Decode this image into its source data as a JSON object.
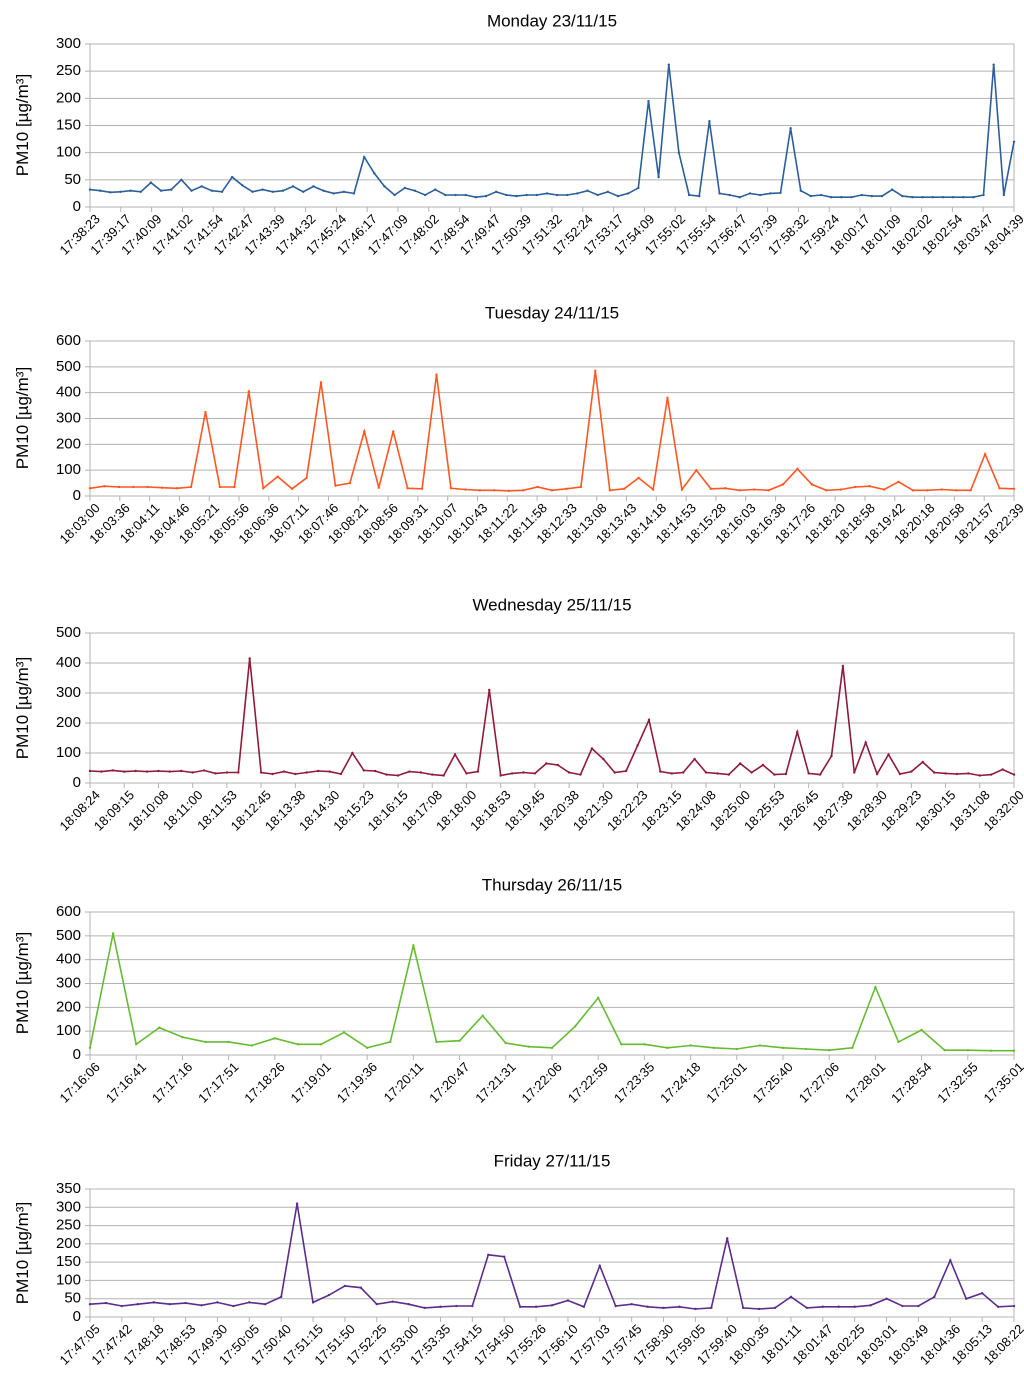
{
  "chart_data": [
    {
      "type": "line",
      "title": "Monday 23/11/15",
      "ylabel": "PM10 [µg/m³]",
      "xlabel": "",
      "ylim": [
        0,
        300
      ],
      "yticks": [
        0,
        50,
        100,
        150,
        200,
        250,
        300
      ],
      "color": "#2c5f99",
      "tick_labels": [
        "17:38:23",
        "17:39:17",
        "17:40:09",
        "17:41:02",
        "17:41:54",
        "17:42:47",
        "17:43:39",
        "17:44:32",
        "17:45:24",
        "17:46:17",
        "17:47:09",
        "17:48:02",
        "17:48:54",
        "17:49:47",
        "17:50:39",
        "17:51:32",
        "17:52:24",
        "17:53:17",
        "17:54:09",
        "17:55:02",
        "17:55:54",
        "17:56:47",
        "17:57:39",
        "17:58:32",
        "17:59:24",
        "18:00:17",
        "18:01:09",
        "18:02:02",
        "18:02:54",
        "18:03:47",
        "18:04:39"
      ],
      "values": [
        32,
        30,
        27,
        28,
        30,
        28,
        45,
        30,
        32,
        50,
        30,
        38,
        30,
        28,
        55,
        40,
        28,
        32,
        28,
        30,
        38,
        28,
        38,
        30,
        25,
        28,
        25,
        92,
        62,
        38,
        22,
        35,
        30,
        22,
        32,
        22,
        22,
        22,
        18,
        20,
        28,
        22,
        20,
        22,
        22,
        25,
        22,
        22,
        25,
        30,
        22,
        28,
        20,
        25,
        35,
        195,
        55,
        262,
        100,
        22,
        20,
        158,
        25,
        22,
        18,
        25,
        22,
        25,
        26,
        145,
        30,
        20,
        22,
        18,
        18,
        18,
        22,
        20,
        20,
        32,
        20,
        18,
        18,
        18,
        18,
        18,
        18,
        18,
        22,
        262,
        22,
        120
      ]
    },
    {
      "type": "line",
      "title": "Tuesday 24/11/15",
      "ylabel": "PM10 [µg/m³]",
      "xlabel": "",
      "ylim": [
        0,
        600
      ],
      "yticks": [
        0,
        100,
        200,
        300,
        400,
        500,
        600
      ],
      "color": "#ff5722",
      "tick_labels": [
        "18:03:00",
        "18:03:36",
        "18:04:11",
        "18:04:46",
        "18:05:21",
        "18:05:56",
        "18:06:36",
        "18:07:11",
        "18:07:46",
        "18:08:21",
        "18:08:56",
        "18:09:31",
        "18:10:07",
        "18:10:43",
        "18:11:22",
        "18:11:58",
        "18:12:33",
        "18:13:08",
        "18:13:43",
        "18:14:18",
        "18:14:53",
        "18:15:28",
        "18:16:03",
        "18:16:38",
        "18:17:26",
        "18:18:20",
        "18:18:58",
        "18:19:42",
        "18:20:18",
        "18:20:58",
        "18:21:57",
        "18:22:39"
      ],
      "values": [
        30,
        38,
        35,
        35,
        35,
        32,
        30,
        35,
        325,
        35,
        35,
        405,
        30,
        75,
        28,
        70,
        440,
        40,
        50,
        250,
        32,
        250,
        30,
        28,
        470,
        30,
        25,
        22,
        22,
        20,
        22,
        35,
        22,
        28,
        35,
        485,
        22,
        28,
        70,
        25,
        380,
        25,
        100,
        28,
        30,
        22,
        25,
        22,
        45,
        105,
        45,
        22,
        25,
        35,
        38,
        25,
        55,
        22,
        22,
        25,
        22,
        22,
        162,
        30,
        28
      ]
    },
    {
      "type": "line",
      "title": "Wednesday 25/11/15",
      "ylabel": "PM10 [µg/m³]",
      "xlabel": "",
      "ylim": [
        0,
        500
      ],
      "yticks": [
        0,
        100,
        200,
        300,
        400,
        500
      ],
      "color": "#8e1b3c",
      "tick_labels": [
        "18:08:24",
        "18:09:15",
        "18:10:08",
        "18:11:00",
        "18:11:53",
        "18:12:45",
        "18:13:38",
        "18:14:30",
        "18:15:23",
        "18:16:15",
        "18:17:08",
        "18:18:00",
        "18:18:53",
        "18:19:45",
        "18:20:38",
        "18:21:30",
        "18:22:23",
        "18:23:15",
        "18:24:08",
        "18:25:00",
        "18:25:53",
        "18:26:45",
        "18:27:38",
        "18:28:30",
        "18:29:23",
        "18:30:15",
        "18:31:08",
        "18:32:00"
      ],
      "values": [
        40,
        38,
        42,
        38,
        40,
        38,
        40,
        38,
        40,
        35,
        42,
        32,
        35,
        35,
        415,
        35,
        30,
        38,
        30,
        35,
        40,
        38,
        30,
        100,
        42,
        40,
        28,
        25,
        38,
        35,
        28,
        25,
        95,
        32,
        38,
        310,
        25,
        32,
        35,
        32,
        65,
        60,
        35,
        28,
        115,
        80,
        35,
        40,
        125,
        210,
        38,
        32,
        35,
        80,
        35,
        32,
        28,
        65,
        35,
        60,
        28,
        30,
        170,
        32,
        28,
        90,
        390,
        35,
        135,
        30,
        95,
        30,
        38,
        70,
        35,
        32,
        30,
        32,
        25,
        28,
        45,
        28
      ]
    },
    {
      "type": "line",
      "title": "Thursday 26/11/15",
      "ylabel": "PM10 [µg/m³]",
      "xlabel": "",
      "ylim": [
        0,
        600
      ],
      "yticks": [
        0,
        100,
        200,
        300,
        400,
        500,
        600
      ],
      "color": "#66bb33",
      "tick_labels": [
        "17:16:06",
        "17:16:41",
        "17:17:16",
        "17:17:51",
        "17:18:26",
        "17:19:01",
        "17:19:36",
        "17:20:11",
        "17:20:47",
        "17:21:31",
        "17:22:06",
        "17:22:59",
        "17:23:35",
        "17:24:18",
        "17:25:01",
        "17:25:40",
        "17:27:06",
        "17:28:01",
        "17:28:54",
        "17:32:55",
        "17:35:01"
      ],
      "values": [
        30,
        510,
        45,
        115,
        75,
        55,
        55,
        40,
        70,
        45,
        45,
        95,
        30,
        55,
        460,
        55,
        60,
        165,
        50,
        35,
        30,
        120,
        240,
        45,
        45,
        30,
        40,
        30,
        25,
        40,
        30,
        25,
        20,
        30,
        285,
        55,
        105,
        20,
        20,
        18,
        18
      ]
    },
    {
      "type": "line",
      "title": "Friday 27/11/15",
      "ylabel": "PM10 [µg/m³]",
      "xlabel": "",
      "ylim": [
        0,
        350
      ],
      "yticks": [
        0,
        50,
        100,
        150,
        200,
        250,
        300,
        350
      ],
      "color": "#5c2d8a",
      "tick_labels": [
        "17:47:05",
        "17:47:42",
        "17:48:18",
        "17:48:53",
        "17:49:30",
        "17:50:05",
        "17:50:40",
        "17:51:15",
        "17:51:50",
        "17:52:25",
        "17:53:00",
        "17:53:35",
        "17:54:15",
        "17:54:50",
        "17:55:26",
        "17:56:10",
        "17:57:03",
        "17:57:45",
        "17:58:30",
        "17:59:05",
        "17:59:40",
        "18:00:35",
        "18:01:11",
        "18:01:47",
        "18:02:25",
        "18:03:01",
        "18:03:49",
        "18:04:36",
        "18:05:13",
        "18:08:22"
      ],
      "values": [
        35,
        38,
        30,
        35,
        40,
        35,
        38,
        32,
        40,
        30,
        40,
        35,
        55,
        310,
        40,
        60,
        85,
        80,
        35,
        42,
        35,
        25,
        28,
        30,
        30,
        170,
        165,
        28,
        28,
        32,
        45,
        28,
        140,
        30,
        35,
        28,
        25,
        28,
        22,
        25,
        215,
        25,
        22,
        25,
        55,
        25,
        28,
        28,
        28,
        32,
        50,
        30,
        30,
        55,
        155,
        50,
        65,
        28,
        30
      ]
    }
  ]
}
